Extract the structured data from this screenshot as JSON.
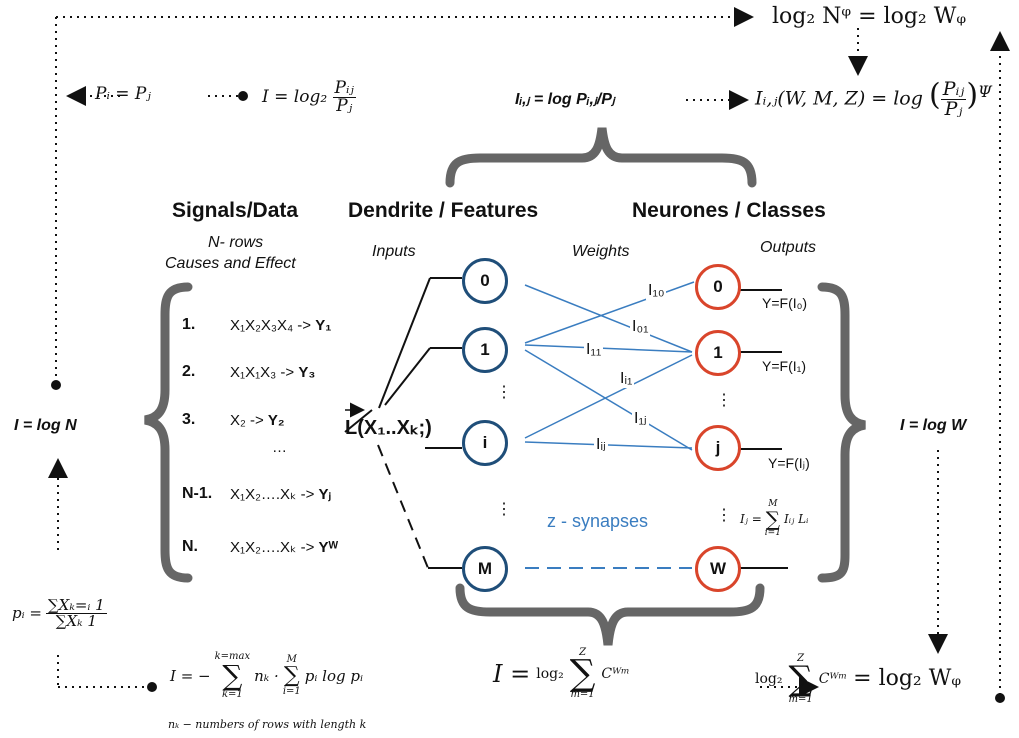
{
  "top_right_eq": "log₂ Nᵠ = log₂ Wᵩ",
  "top_left_eq": {
    "pi_pj": "Pᵢ = Pⱼ",
    "I_prefix": "I = log₂",
    "num": "Pᵢⱼ",
    "den": "Pⱼ"
  },
  "top_center_eq": {
    "bold": "Iᵢ,ⱼ = log Pᵢ,ⱼ/Pⱼ",
    "right_prefix": "Iᵢ,ⱼ(W, M, Z) = log",
    "num": "Pᵢⱼ",
    "den": "Pⱼ",
    "sup": "Ψ"
  },
  "headers": {
    "signals": "Signals/Data",
    "signals_sub1": "N- rows",
    "signals_sub2": "Causes and Effect",
    "dendrite": "Dendrite / Features",
    "neurones": "Neurones / Classes",
    "inputs": "Inputs",
    "weights": "Weights",
    "outputs": "Outputs"
  },
  "rows": [
    {
      "num": "1.",
      "text": "X₁X₂X₃X₄ ->",
      "y": "Y₁"
    },
    {
      "num": "2.",
      "text": "X₁X₁X₃ ->",
      "y": "Y₃"
    },
    {
      "num": "3.",
      "text": "X₂ ->",
      "y": "Y₂"
    },
    {
      "num": "N-1.",
      "text": "X₁X₂….Xₖ ->",
      "y": "Yⱼ"
    },
    {
      "num": "N.",
      "text": "X₁X₂….Xₖ ->",
      "y": "Yᵂ"
    }
  ],
  "ellipsis": "…",
  "L_label": "L(X₁..Xₖ;)",
  "left_I": "I = log N",
  "right_I": "I = log W",
  "input_nodes": [
    "0",
    "1",
    "i",
    "M"
  ],
  "output_nodes": [
    "0",
    "1",
    "j",
    "W"
  ],
  "weights": {
    "I10": "I₁₀",
    "I01": "I₀₁",
    "I11": "I₁₁",
    "Ii1": "Iᵢ₁",
    "I1j": "I₁ⱼ",
    "Iij": "Iᵢⱼ"
  },
  "vdots": "⋮",
  "outputs_f": [
    "Y=F(I₀)",
    "Y=F(I₁)",
    "Y=F(Iⱼ)"
  ],
  "synapses": "z - synapses",
  "Ij_sum": {
    "lhs": "Iⱼ =",
    "top": "M",
    "bottom": "i=1",
    "body": "Iᵢⱼ Lᵢ"
  },
  "pi_formula": {
    "lhs": "pᵢ =",
    "num": "∑Xₖ=ᵢ 1",
    "den": "∑Xₖ 1"
  },
  "entropy": {
    "lhs": "I = −",
    "top": "k=max",
    "bottom": "k=1",
    "mid": "nₖ ·",
    "top2": "M",
    "bottom2": "i=1",
    "body": "pᵢ log pᵢ",
    "note": "nₖ − numbers of rows with length k"
  },
  "bottom_eq": {
    "lhs": "I =",
    "log": "log₂",
    "top": "Z",
    "bottom": "m=1",
    "body": "Cᵂᵐ",
    "rhs": "= log₂ Wᵩ"
  }
}
